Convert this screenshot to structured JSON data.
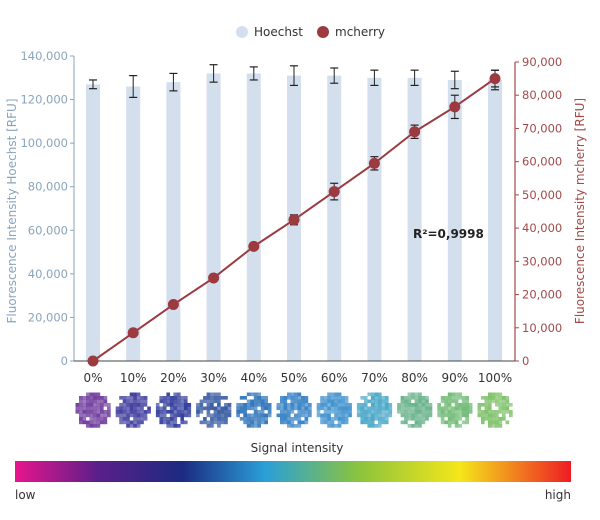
{
  "chart_data": {
    "type": "bar",
    "categories": [
      "0%",
      "10%",
      "20%",
      "30%",
      "40%",
      "50%",
      "60%",
      "70%",
      "80%",
      "90%",
      "100%"
    ],
    "series": [
      {
        "name": "Hoechst",
        "type": "bar",
        "axis": "left",
        "color": "#d4dfee",
        "values": [
          127000,
          126000,
          128000,
          132000,
          132000,
          131000,
          131000,
          130000,
          130000,
          129000,
          129000
        ],
        "error": [
          2000,
          5000,
          4000,
          4000,
          3000,
          4500,
          3500,
          3500,
          3500,
          4000,
          4500
        ]
      },
      {
        "name": "mcherry",
        "type": "line",
        "axis": "right",
        "color": "#9b3a3f",
        "values": [
          0,
          8500,
          17000,
          25000,
          34500,
          42500,
          51000,
          59500,
          69000,
          76500,
          85000
        ],
        "error": [
          0,
          0,
          0,
          0,
          0,
          1500,
          2500,
          2000,
          2000,
          3500,
          2500
        ]
      }
    ],
    "ylabel": "Fluorescence Intensity Hoechst [RFU]",
    "y2label": "Fluorescence Intensity mcherry [RFU]",
    "ylim": [
      0,
      140000
    ],
    "y2lim": [
      0,
      90000
    ],
    "yticks": [
      "0",
      "20,000",
      "40,000",
      "60,000",
      "80,000",
      "100,000",
      "120,000",
      "140,000"
    ],
    "y2ticks": [
      "0",
      "10,000",
      "20,000",
      "30,000",
      "40,000",
      "50,000",
      "60,000",
      "70,000",
      "80,000",
      "90,000"
    ],
    "annotation": "R²=0,9998",
    "legend_position": "top-center",
    "grid": false
  },
  "wells": {
    "colors": [
      "#6e3a9c",
      "#3d3a9c",
      "#2f3a9a",
      "#31559e",
      "#2b72b8",
      "#3380c4",
      "#3c8fcc",
      "#48a6c8",
      "#67b28a",
      "#6fba74",
      "#7cc066"
    ]
  },
  "gradient": {
    "title": "Signal intensity",
    "low": "low",
    "high": "high",
    "colors": [
      "#e8158c",
      "#1c2a80",
      "#1d3c8c",
      "#2a9fd8",
      "#8cc43c",
      "#f5e61a",
      "#ee1c24"
    ]
  }
}
